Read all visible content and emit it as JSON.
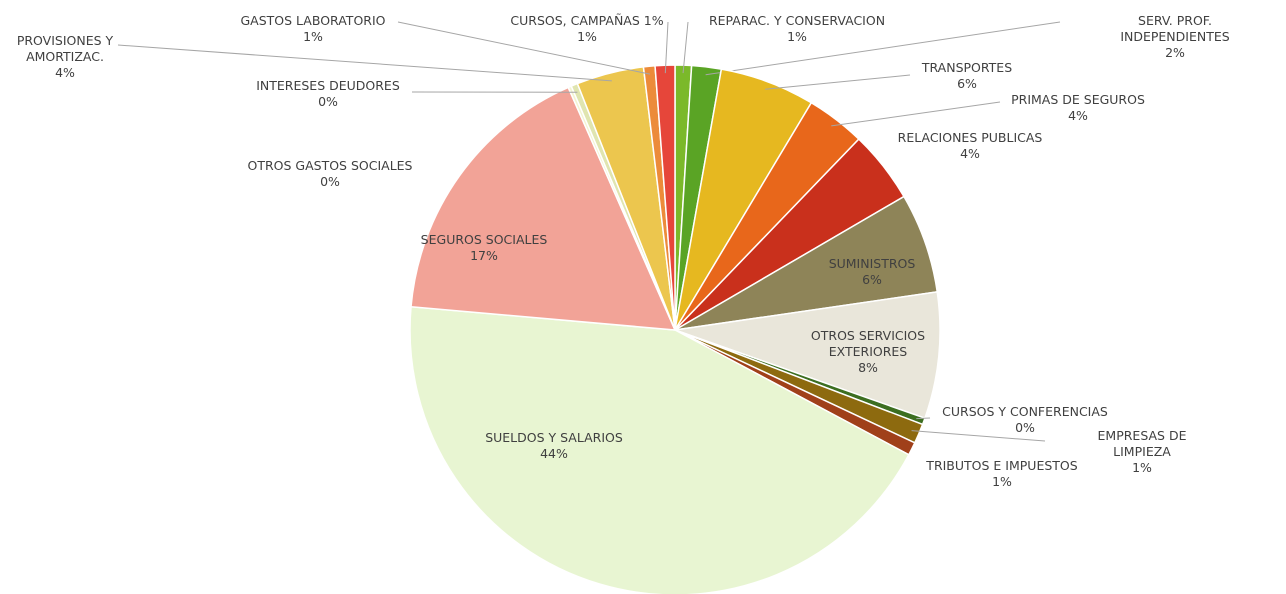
{
  "chart_data": {
    "type": "pie",
    "categories": [
      "REPARAC. Y CONSERVACION",
      "SERV. PROF. INDEPENDIENTES",
      "TRANSPORTES",
      "PRIMAS DE SEGUROS",
      "RELACIONES PUBLICAS",
      "SUMINISTROS",
      "OTROS SERVICIOS\nEXTERIORES",
      "CURSOS Y CONFERENCIAS",
      "EMPRESAS DE LIMPIEZA",
      "TRIBUTOS E IMPUESTOS",
      "SUELDOS Y SALARIOS",
      "SEGUROS SOCIALES",
      "OTROS GASTOS SOCIALES",
      "INTERESES DEUDORES",
      "PROVISIONES Y\nAMORTIZAC.",
      "GASTOS LABORATORIO",
      "CURSOS, CAMPAÑAS 1%"
    ],
    "values": [
      1.0,
      1.8,
      5.8,
      3.6,
      4.4,
      6.1,
      7.7,
      0.4,
      1.2,
      0.8,
      43.6,
      17.0,
      0.2,
      0.4,
      4.1,
      0.7,
      1.2
    ],
    "value_labels": [
      "1%",
      "2%",
      "6%",
      "4%",
      "4%",
      "6%",
      "8%",
      "0%",
      "1%",
      "1%",
      "44%",
      "17%",
      "0%",
      "0%",
      "4%",
      "1%",
      "1%"
    ],
    "colors": [
      "#7bb92a",
      "#5aa425",
      "#e6b820",
      "#e8671b",
      "#c9301c",
      "#8e8458",
      "#e9e6da",
      "#3c6e20",
      "#8d6a0f",
      "#a0401a",
      "#e8f5d2",
      "#f2a397",
      "#f3f4d0",
      "#e0e5b0",
      "#ecc64e",
      "#ec8b3a",
      "#e6463a"
    ]
  }
}
